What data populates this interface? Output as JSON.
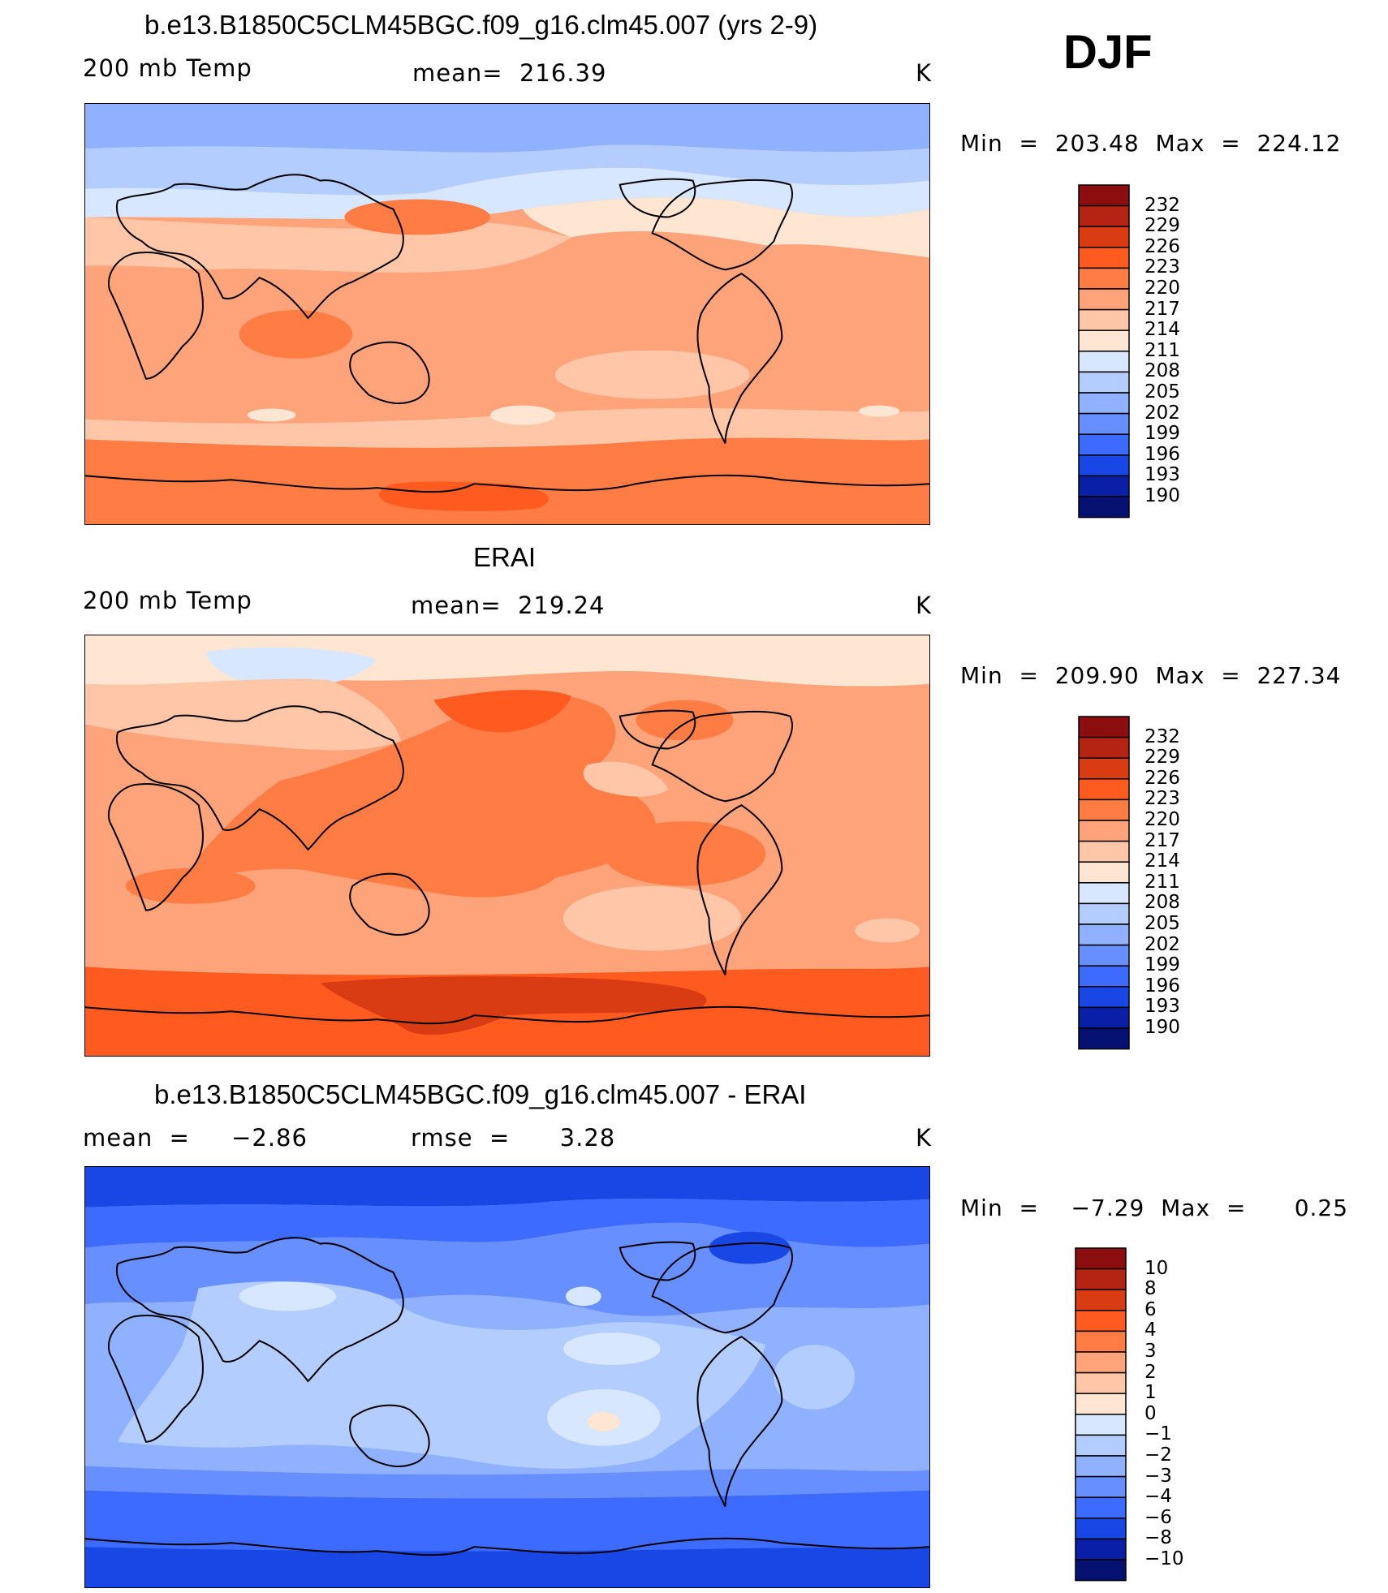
{
  "season": "DJF",
  "panels": [
    {
      "title": "b.e13.B1850C5CLM45BGC.f09_g16.clm45.007 (yrs 2-9)",
      "left_label": "200 mb Temp",
      "center_label": "mean=  216.39",
      "units": "K",
      "minmax": "Min  =  203.48  Max  =  224.12",
      "colorbar": {
        "levels": [
          "232",
          "229",
          "226",
          "223",
          "220",
          "217",
          "214",
          "211",
          "208",
          "205",
          "202",
          "199",
          "196",
          "193",
          "190"
        ],
        "colors": [
          "#8c0d0d",
          "#b52312",
          "#d93b12",
          "#ff5a1f",
          "#ff7c45",
          "#ffa37a",
          "#ffc7a8",
          "#ffe6d2",
          "#d6e7ff",
          "#b4cdff",
          "#8fb1ff",
          "#678fff",
          "#3d6aff",
          "#1947e6",
          "#0a1fa8",
          "#041170"
        ]
      }
    },
    {
      "title": "ERAI",
      "left_label": "200 mb Temp",
      "center_label": "mean=  219.24",
      "units": "K",
      "minmax": "Min  =  209.90  Max  =  227.34",
      "colorbar": {
        "levels": [
          "232",
          "229",
          "226",
          "223",
          "220",
          "217",
          "214",
          "211",
          "208",
          "205",
          "202",
          "199",
          "196",
          "193",
          "190"
        ],
        "colors": [
          "#8c0d0d",
          "#b52312",
          "#d93b12",
          "#ff5a1f",
          "#ff7c45",
          "#ffa37a",
          "#ffc7a8",
          "#ffe6d2",
          "#d6e7ff",
          "#b4cdff",
          "#8fb1ff",
          "#678fff",
          "#3d6aff",
          "#1947e6",
          "#0a1fa8",
          "#041170"
        ]
      }
    },
    {
      "title": "b.e13.B1850C5CLM45BGC.f09_g16.clm45.007 - ERAI",
      "left_label": "mean  =     −2.86",
      "center_label": "rmse  =      3.28",
      "units": "K",
      "minmax": "Min  =    −7.29  Max  =      0.25",
      "colorbar": {
        "levels": [
          "10",
          "8",
          "6",
          "4",
          "3",
          "2",
          "1",
          "0",
          "−1",
          "−2",
          "−3",
          "−4",
          "−6",
          "−8",
          "−10"
        ],
        "colors": [
          "#8c0d0d",
          "#b52312",
          "#d93b12",
          "#ff5a1f",
          "#ff7c45",
          "#ffa37a",
          "#ffc7a8",
          "#ffe6d2",
          "#d6e7ff",
          "#b4cdff",
          "#8fb1ff",
          "#678fff",
          "#3d6aff",
          "#1947e6",
          "#0a1fa8",
          "#041170"
        ]
      }
    }
  ]
}
